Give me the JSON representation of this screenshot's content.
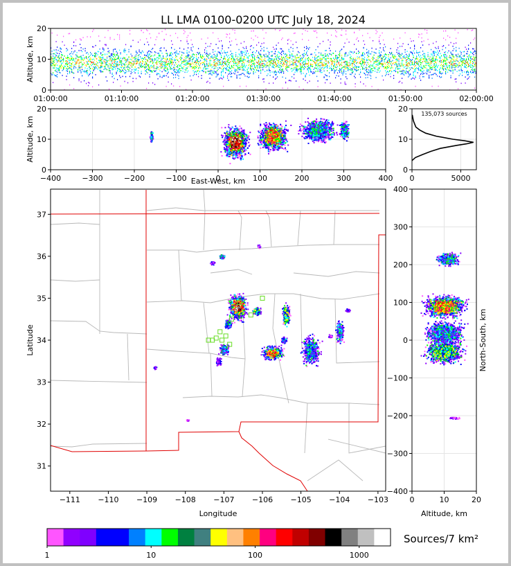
{
  "chart_data": [
    {
      "id": "time-height",
      "type": "scatter",
      "title": "LL LMA 0100-0200 UTC July 18, 2024",
      "ylabel": "Altitude, km",
      "x_ticks": [
        "01:00:00",
        "01:10:00",
        "01:20:00",
        "01:30:00",
        "01:40:00",
        "01:50:00",
        "02:00:00"
      ],
      "x_range": [
        "01:00:00",
        "02:00:00"
      ],
      "ylim": [
        0,
        20
      ],
      "y_ticks": [
        0,
        10,
        20
      ],
      "source_band_km": [
        3,
        14
      ],
      "densest_altitude_km": 9
    },
    {
      "id": "east-west-altitude",
      "type": "scatter",
      "xlabel": "East-West, km",
      "ylabel": "Altitude, km",
      "xlim": [
        -400,
        400
      ],
      "x_ticks": [
        -400,
        -300,
        -200,
        -100,
        0,
        100,
        200,
        300,
        400
      ],
      "ylim": [
        0,
        20
      ],
      "y_ticks": [
        0,
        10,
        20
      ],
      "clusters": [
        {
          "x": -160,
          "alt": 11,
          "w": 8,
          "h": 5,
          "level": 2
        },
        {
          "x": 40,
          "alt": 9,
          "w": 85,
          "h": 14,
          "level": 5
        },
        {
          "x": 130,
          "alt": 11,
          "w": 95,
          "h": 12,
          "level": 4
        },
        {
          "x": 240,
          "alt": 13,
          "w": 110,
          "h": 10,
          "level": 2
        },
        {
          "x": 300,
          "alt": 13,
          "w": 30,
          "h": 8,
          "level": 2
        }
      ]
    },
    {
      "id": "altitude-histogram",
      "type": "line",
      "annotation": "135,073 sources",
      "xlim": [
        0,
        6600
      ],
      "x_ticks": [
        0,
        5000
      ],
      "ylim": [
        0,
        20
      ],
      "y_ticks": [
        0,
        10,
        20
      ],
      "profile_alt": [
        3,
        4,
        5,
        6,
        7,
        8,
        8.5,
        9,
        9.5,
        10,
        11,
        12,
        13,
        14,
        16,
        18
      ],
      "profile_count": [
        0,
        350,
        1100,
        1900,
        2900,
        4600,
        5600,
        6300,
        5400,
        4200,
        2500,
        1400,
        800,
        400,
        150,
        30
      ]
    },
    {
      "id": "plan-view",
      "type": "scatter",
      "xlabel": "Longitude",
      "ylabel": "Latitude",
      "xlim": [
        -111.5,
        -102.8
      ],
      "x_ticks": [
        -111,
        -110,
        -109,
        -108,
        -107,
        -106,
        -105,
        -104,
        -103
      ],
      "ylim": [
        30.4,
        37.6
      ],
      "y_ticks": [
        31,
        32,
        33,
        34,
        35,
        36,
        37
      ],
      "clusters": [
        {
          "lon": -106.65,
          "lat": 34.8,
          "w": 0.65,
          "h": 0.85,
          "level": 5
        },
        {
          "lon": -106.15,
          "lat": 34.7,
          "w": 0.3,
          "h": 0.25,
          "level": 3
        },
        {
          "lon": -106.9,
          "lat": 34.4,
          "w": 0.25,
          "h": 0.3,
          "level": 2
        },
        {
          "lon": -107.0,
          "lat": 33.8,
          "w": 0.35,
          "h": 0.35,
          "level": 2
        },
        {
          "lon": -107.15,
          "lat": 33.5,
          "w": 0.2,
          "h": 0.25,
          "level": 1
        },
        {
          "lon": -105.75,
          "lat": 33.7,
          "w": 0.75,
          "h": 0.45,
          "level": 4
        },
        {
          "lon": -105.4,
          "lat": 34.6,
          "w": 0.25,
          "h": 0.7,
          "level": 3
        },
        {
          "lon": -105.45,
          "lat": 34.0,
          "w": 0.2,
          "h": 0.2,
          "level": 2
        },
        {
          "lon": -104.75,
          "lat": 33.75,
          "w": 0.6,
          "h": 0.9,
          "level": 2
        },
        {
          "lon": -104.0,
          "lat": 34.2,
          "w": 0.25,
          "h": 0.7,
          "level": 2
        },
        {
          "lon": -103.8,
          "lat": 34.72,
          "w": 0.15,
          "h": 0.1,
          "level": 1
        },
        {
          "lon": -104.25,
          "lat": 34.1,
          "w": 0.15,
          "h": 0.12,
          "level": 1
        },
        {
          "lon": -107.05,
          "lat": 36.0,
          "w": 0.18,
          "h": 0.15,
          "level": 2
        },
        {
          "lon": -107.3,
          "lat": 35.85,
          "w": 0.18,
          "h": 0.1,
          "level": 1
        },
        {
          "lon": -106.1,
          "lat": 36.25,
          "w": 0.1,
          "h": 0.1,
          "level": 1
        },
        {
          "lon": -108.8,
          "lat": 33.35,
          "w": 0.1,
          "h": 0.1,
          "level": 1
        },
        {
          "lon": -107.95,
          "lat": 32.1,
          "w": 0.08,
          "h": 0.05,
          "level": 1
        }
      ],
      "stations": [
        [
          -107.3,
          34.0
        ],
        [
          -107.2,
          34.05
        ],
        [
          -107.05,
          34.0
        ],
        [
          -107.1,
          34.2
        ],
        [
          -106.95,
          34.1
        ],
        [
          -106.85,
          33.9
        ],
        [
          -106.8,
          34.5
        ],
        [
          -106.6,
          34.9
        ],
        [
          -106.3,
          34.6
        ],
        [
          -106.0,
          35.0
        ],
        [
          -107.4,
          34.0
        ]
      ]
    },
    {
      "id": "altitude-north-south",
      "type": "scatter",
      "xlabel": "Altitude, km",
      "ylabel": "North-South, km",
      "xlim": [
        0,
        20
      ],
      "x_ticks": [
        0,
        10,
        20
      ],
      "ylim": [
        -400,
        400
      ],
      "y_ticks": [
        -400,
        -300,
        -200,
        -100,
        0,
        100,
        200,
        300,
        400
      ],
      "clusters": [
        {
          "alt": 11,
          "ns": 215,
          "w": 9,
          "h": 45,
          "level": 2
        },
        {
          "alt": 10,
          "ns": 90,
          "w": 18,
          "h": 80,
          "level": 4
        },
        {
          "alt": 10,
          "ns": 20,
          "w": 16,
          "h": 80,
          "level": 2
        },
        {
          "alt": 10,
          "ns": -30,
          "w": 16,
          "h": 80,
          "level": 3
        },
        {
          "alt": 13,
          "ns": -205,
          "w": 4,
          "h": 6,
          "level": 1
        }
      ]
    },
    {
      "id": "colorbar",
      "type": "heatmap",
      "label": "Sources/7 km²",
      "scale": "log",
      "range": [
        1,
        2000
      ],
      "tick_labels": [
        "1",
        "10",
        "100",
        "1000"
      ],
      "tick_values": [
        1,
        10,
        100,
        1000
      ],
      "colors": [
        "#ff55ff",
        "#9000ff",
        "#7f00ff",
        "#0000ff",
        "#0000ff",
        "#0080ff",
        "#00ffff",
        "#00ff00",
        "#008040",
        "#408080",
        "#ffff00",
        "#ffc080",
        "#ff8000",
        "#ff0080",
        "#ff0000",
        "#c00000",
        "#800000",
        "#000000",
        "#808080",
        "#c0c0c0",
        "#ffffff"
      ]
    }
  ]
}
